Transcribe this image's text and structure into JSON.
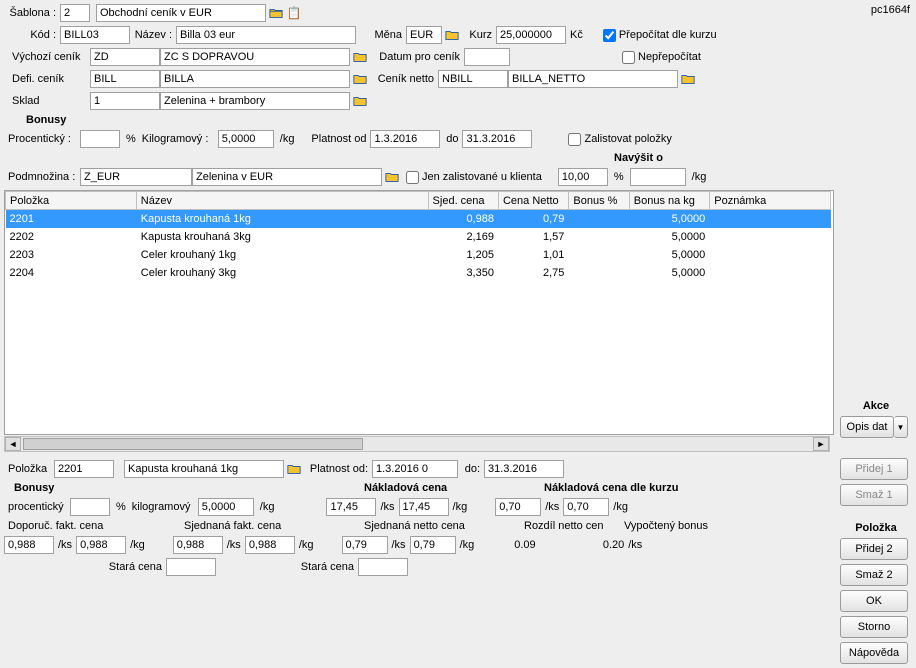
{
  "form_id": "pc1664f",
  "top": {
    "sablona_label": "Šablona :",
    "sablona_val": "2",
    "sablona_name": "Obchodní ceník v EUR",
    "kod_label": "Kód :",
    "kod_val": "BILL03",
    "nazev_label": "Název :",
    "nazev_val": "Billa 03 eur",
    "mena_label": "Měna",
    "mena_val": "EUR",
    "kurz_label": "Kurz",
    "kurz_val": "25,000000",
    "kurz_unit": "Kč",
    "prepocitat_label": "Přepočítat dle kurzu",
    "neprepocitat_label": "Nepřepočítat",
    "vychozi_label": "Výchozí ceník",
    "vychozi_code": "ZD",
    "vychozi_name": "ZC S DOPRAVOU",
    "datum_label": "Datum pro ceník",
    "datum_val": "",
    "defi_label": "Defi. ceník",
    "defi_code": "BILL",
    "defi_name": "BILLA",
    "netto_label": "Ceník netto",
    "netto_code": "NBILL",
    "netto_name": "BILLA_NETTO",
    "sklad_label": "Sklad",
    "sklad_code": "1",
    "sklad_name": "Zelenina + brambory"
  },
  "bonusy": {
    "title": "Bonusy",
    "proc_label": "Procentický :",
    "proc_val": "",
    "proc_unit": "%",
    "kg_label": "Kilogramový :",
    "kg_val": "5,0000",
    "kg_unit": "/kg",
    "platnost_od_label": "Platnost od",
    "platnost_od_val": "1.3.2016",
    "platnost_do_label": "do",
    "platnost_do_val": "31.3.2016",
    "zalistovat_label": "Zalistovat položky"
  },
  "podmnozina": {
    "label": "Podmnožina :",
    "code": "Z_EUR",
    "name": "Zelenina v EUR",
    "jen_zalist_label": "Jen zalistované u klienta",
    "navysit_label": "Navýšit o",
    "navysit_pct": "10,00",
    "navysit_pct_unit": "%",
    "navysit_kg": "",
    "navysit_kg_unit": "/kg"
  },
  "grid": {
    "columns": [
      "Položka",
      "Název",
      "Sjed. cena",
      "Cena Netto",
      "Bonus %",
      "Bonus na kg",
      "Poznámka"
    ],
    "rows": [
      {
        "polozka": "2201",
        "nazev": "Kapusta krouhaná 1kg",
        "sjed": "0,988",
        "netto": "0,79",
        "bonus_pct": "",
        "bonus_kg": "5,0000",
        "pozn": "",
        "selected": true
      },
      {
        "polozka": "2202",
        "nazev": "Kapusta krouhaná 3kg",
        "sjed": "2,169",
        "netto": "1,57",
        "bonus_pct": "",
        "bonus_kg": "5,0000",
        "pozn": "",
        "selected": false
      },
      {
        "polozka": "2203",
        "nazev": "Celer krouhaný 1kg",
        "sjed": "1,205",
        "netto": "1,01",
        "bonus_pct": "",
        "bonus_kg": "5,0000",
        "pozn": "",
        "selected": false
      },
      {
        "polozka": "2204",
        "nazev": "Celer krouhaný 3kg",
        "sjed": "3,350",
        "netto": "2,75",
        "bonus_pct": "",
        "bonus_kg": "5,0000",
        "pozn": "",
        "selected": false
      }
    ]
  },
  "detail": {
    "polozka_label": "Položka",
    "polozka_val": "2201",
    "polozka_name": "Kapusta krouhaná 1kg",
    "platnost_od_label": "Platnost od:",
    "platnost_od_val": "1.3.2016 0",
    "platnost_do_label": "do:",
    "platnost_do_val": "31.3.2016",
    "bonusy_title": "Bonusy",
    "proc_label": "procentický",
    "proc_val": "",
    "proc_unit": "%",
    "kg_label": "kilogramový",
    "kg_val": "5,0000",
    "kg_unit": "/kg",
    "nakl_title": "Nákladová cena",
    "nakl_ks": "17,45",
    "nakl_ks_unit": "/ks",
    "nakl_kg": "17,45",
    "nakl_kg_unit": "/kg",
    "nakl_kurz_title": "Nákladová cena dle kurzu",
    "nakl_kurz_ks": "0,70",
    "nakl_kurz_ks_unit": "/ks",
    "nakl_kurz_kg": "0,70",
    "nakl_kurz_kg_unit": "/kg",
    "doporuc_title": "Doporuč. fakt. cena",
    "doporuc_ks": "0,988",
    "doporuc_ks_unit": "/ks",
    "doporuc_kg": "0,988",
    "doporuc_kg_unit": "/kg",
    "sjed_title": "Sjednaná fakt. cena",
    "sjed_ks": "0,988",
    "sjed_ks_unit": "/ks",
    "sjed_kg": "0,988",
    "sjed_kg_unit": "/kg",
    "netto_title": "Sjednaná netto cena",
    "netto_ks": "0,79",
    "netto_ks_unit": "/ks",
    "netto_kg": "0,79",
    "netto_kg_unit": "/kg",
    "rozdil_label": "Rozdíl netto cen",
    "rozdil_val": "0.09",
    "vypoc_label": "Vypočtený bonus",
    "vypoc_val": "0.20",
    "vypoc_unit": "/ks",
    "stara_label": "Stará cena",
    "stara_val": "",
    "stara2_label": "Stará cena",
    "stara2_val": ""
  },
  "side": {
    "akce_title": "Akce",
    "opis_dat": "Opis dat",
    "pridej1": "Přidej 1",
    "smaz1": "Smaž 1",
    "polozka_title": "Položka",
    "pridej2": "Přidej 2",
    "smaz2": "Smaž 2",
    "ok": "OK",
    "storno": "Storno",
    "napoveda": "Nápověda"
  }
}
